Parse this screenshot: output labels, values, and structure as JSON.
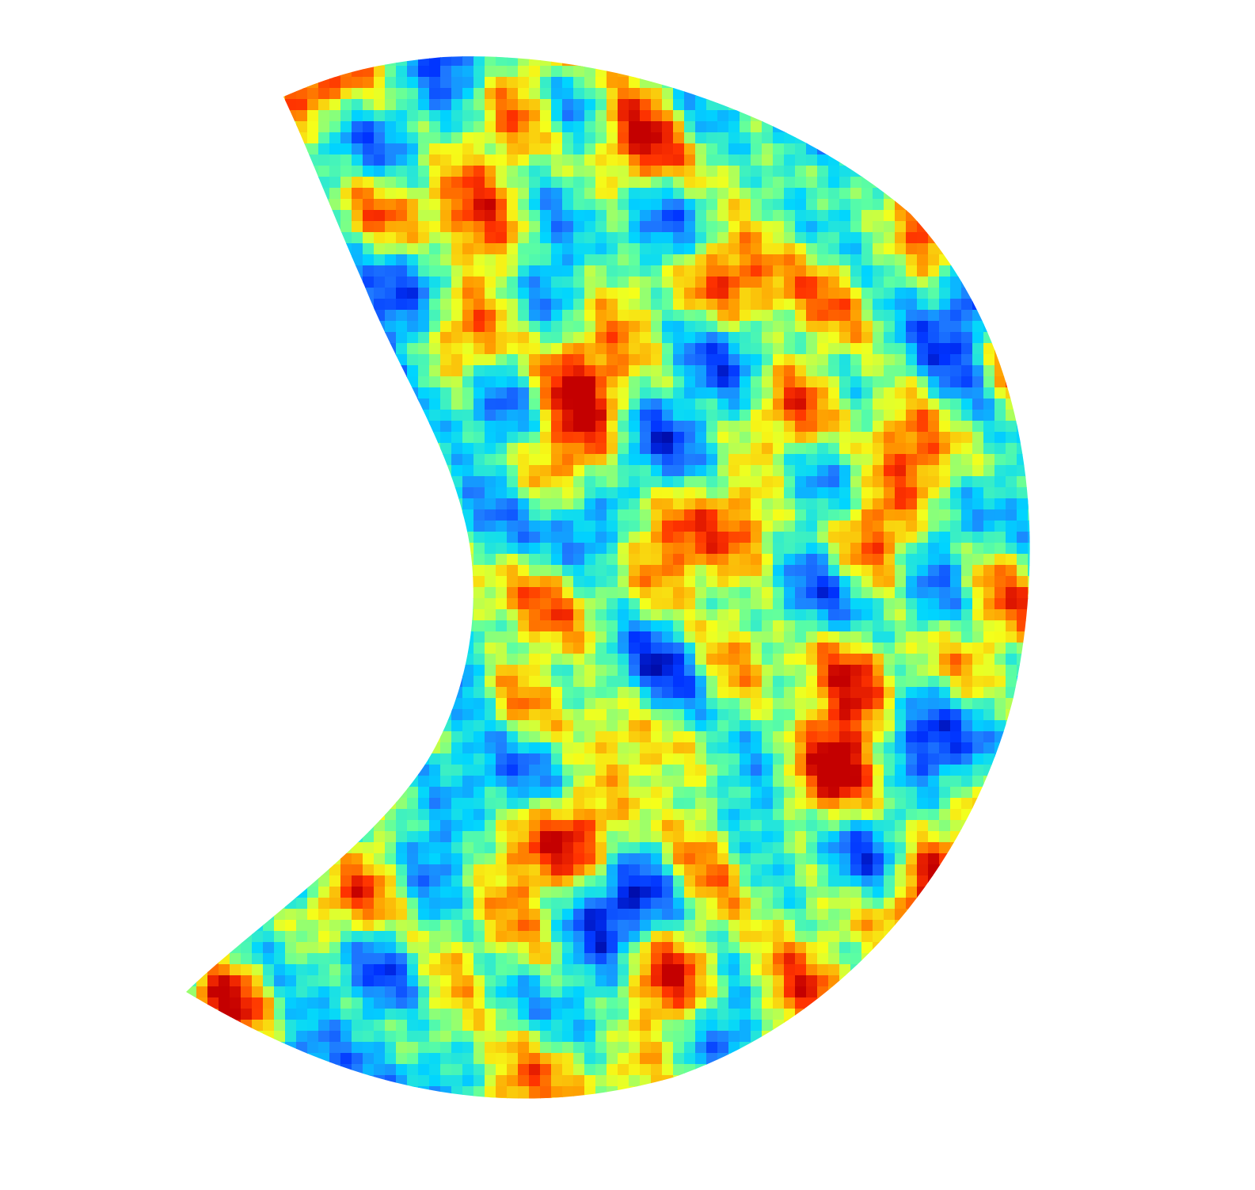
{
  "figure": {
    "background": "#ffffff",
    "colormap": "jet",
    "colormap_stops": [
      "#00008f",
      "#0033ff",
      "#1f7bff",
      "#00d5ff",
      "#5effa0",
      "#f5ff1a",
      "#ff9b00",
      "#ff3300",
      "#c40000"
    ],
    "shape": "crescent",
    "texture": "mottled-noise-field"
  }
}
